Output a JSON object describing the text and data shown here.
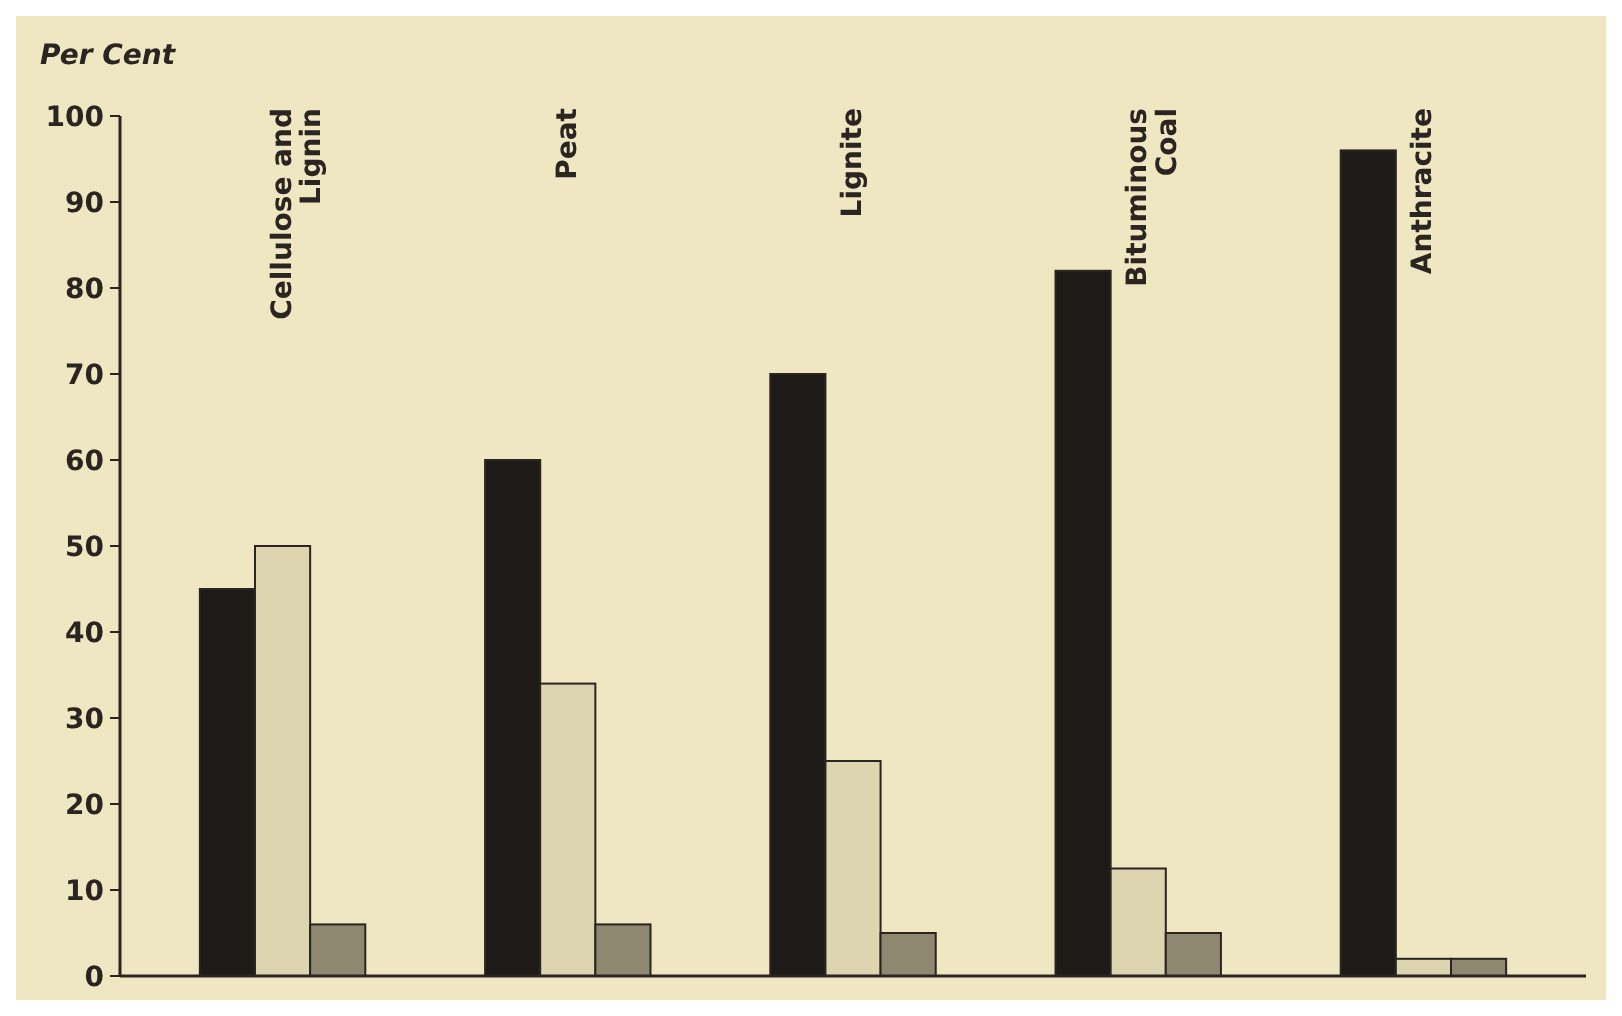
{
  "chart_data": {
    "type": "bar",
    "ylabel": "Per Cent",
    "categories": [
      "Cellulose and Lignin",
      "Peat",
      "Lignite",
      "Bituminous Coal",
      "Anthracite"
    ],
    "series": [
      {
        "color": "#1e1a17",
        "values": [
          45,
          60,
          70,
          82,
          96
        ]
      },
      {
        "color": "#ddd5b0",
        "values": [
          50,
          34,
          25,
          12.5,
          2
        ]
      },
      {
        "color": "#8f8870",
        "values": [
          6,
          6,
          5,
          5,
          2
        ]
      }
    ],
    "ylim": [
      0,
      100
    ],
    "yticks": [
      0,
      10,
      20,
      30,
      40,
      50,
      60,
      70,
      80,
      90,
      100
    ],
    "grid": false
  }
}
